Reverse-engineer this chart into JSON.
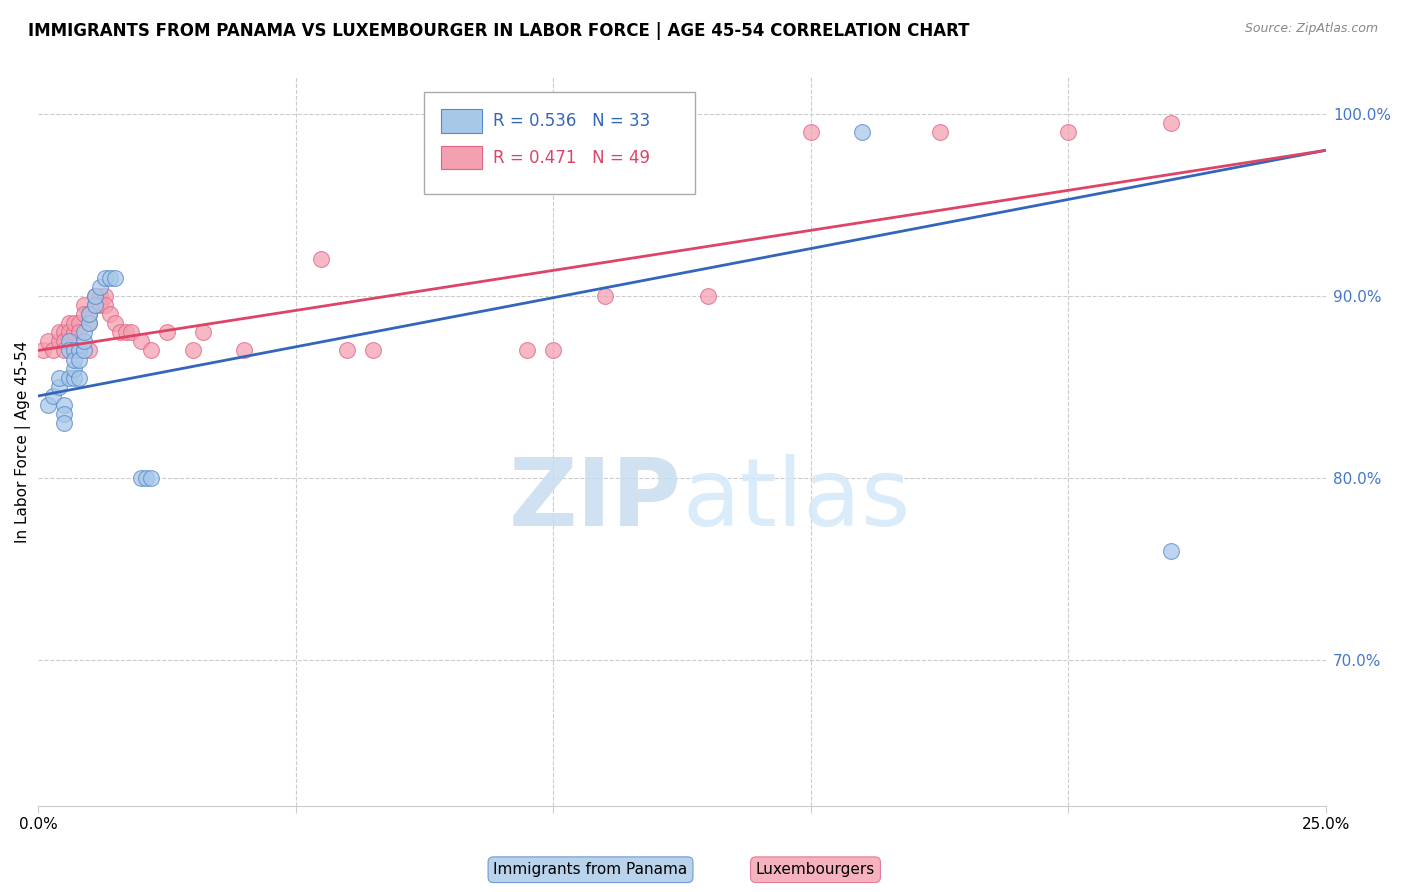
{
  "title": "IMMIGRANTS FROM PANAMA VS LUXEMBOURGER IN LABOR FORCE | AGE 45-54 CORRELATION CHART",
  "source": "Source: ZipAtlas.com",
  "ylabel": "In Labor Force | Age 45-54",
  "ytick_labels": [
    "70.0%",
    "80.0%",
    "90.0%",
    "100.0%"
  ],
  "ytick_values": [
    0.7,
    0.8,
    0.9,
    1.0
  ],
  "xlim": [
    0.0,
    0.25
  ],
  "ylim": [
    0.62,
    1.02
  ],
  "legend_blue_r": "0.536",
  "legend_blue_n": "33",
  "legend_pink_r": "0.471",
  "legend_pink_n": "49",
  "legend_blue_label": "Immigrants from Panama",
  "legend_pink_label": "Luxembourgers",
  "watermark_zip": "ZIP",
  "watermark_atlas": "atlas",
  "blue_color": "#a8c8e8",
  "pink_color": "#f4a0b0",
  "blue_edge_color": "#5588cc",
  "pink_edge_color": "#dd6688",
  "blue_line_color": "#3366bb",
  "pink_line_color": "#dd4466",
  "right_axis_color": "#4477cc",
  "grid_color": "#cccccc",
  "background_color": "#ffffff",
  "title_fontsize": 12,
  "axis_label_fontsize": 11,
  "tick_fontsize": 11,
  "blue_scatter_x": [
    0.002,
    0.003,
    0.004,
    0.004,
    0.005,
    0.005,
    0.005,
    0.006,
    0.006,
    0.006,
    0.007,
    0.007,
    0.007,
    0.007,
    0.008,
    0.008,
    0.008,
    0.009,
    0.009,
    0.009,
    0.01,
    0.01,
    0.011,
    0.011,
    0.012,
    0.013,
    0.014,
    0.015,
    0.02,
    0.021,
    0.022,
    0.16,
    0.22
  ],
  "blue_scatter_y": [
    0.84,
    0.845,
    0.85,
    0.855,
    0.84,
    0.835,
    0.83,
    0.855,
    0.875,
    0.87,
    0.855,
    0.86,
    0.87,
    0.865,
    0.855,
    0.87,
    0.865,
    0.87,
    0.875,
    0.88,
    0.885,
    0.89,
    0.895,
    0.9,
    0.905,
    0.91,
    0.91,
    0.91,
    0.8,
    0.8,
    0.8,
    0.99,
    0.76
  ],
  "pink_scatter_x": [
    0.001,
    0.002,
    0.003,
    0.004,
    0.004,
    0.005,
    0.005,
    0.005,
    0.006,
    0.006,
    0.007,
    0.007,
    0.007,
    0.008,
    0.008,
    0.008,
    0.009,
    0.009,
    0.01,
    0.01,
    0.01,
    0.011,
    0.011,
    0.012,
    0.012,
    0.013,
    0.013,
    0.014,
    0.015,
    0.016,
    0.017,
    0.018,
    0.02,
    0.022,
    0.025,
    0.03,
    0.032,
    0.04,
    0.055,
    0.06,
    0.065,
    0.095,
    0.1,
    0.11,
    0.13,
    0.15,
    0.175,
    0.2,
    0.22
  ],
  "pink_scatter_y": [
    0.87,
    0.875,
    0.87,
    0.875,
    0.88,
    0.88,
    0.875,
    0.87,
    0.885,
    0.88,
    0.88,
    0.885,
    0.87,
    0.885,
    0.88,
    0.87,
    0.895,
    0.89,
    0.89,
    0.885,
    0.87,
    0.9,
    0.895,
    0.9,
    0.895,
    0.9,
    0.895,
    0.89,
    0.885,
    0.88,
    0.88,
    0.88,
    0.875,
    0.87,
    0.88,
    0.87,
    0.88,
    0.87,
    0.92,
    0.87,
    0.87,
    0.87,
    0.87,
    0.9,
    0.9,
    0.99,
    0.99,
    0.99,
    0.995
  ],
  "blue_line_x": [
    0.0,
    0.25
  ],
  "blue_line_y": [
    0.845,
    0.98
  ],
  "pink_line_x": [
    0.0,
    0.25
  ],
  "pink_line_y": [
    0.87,
    0.98
  ]
}
